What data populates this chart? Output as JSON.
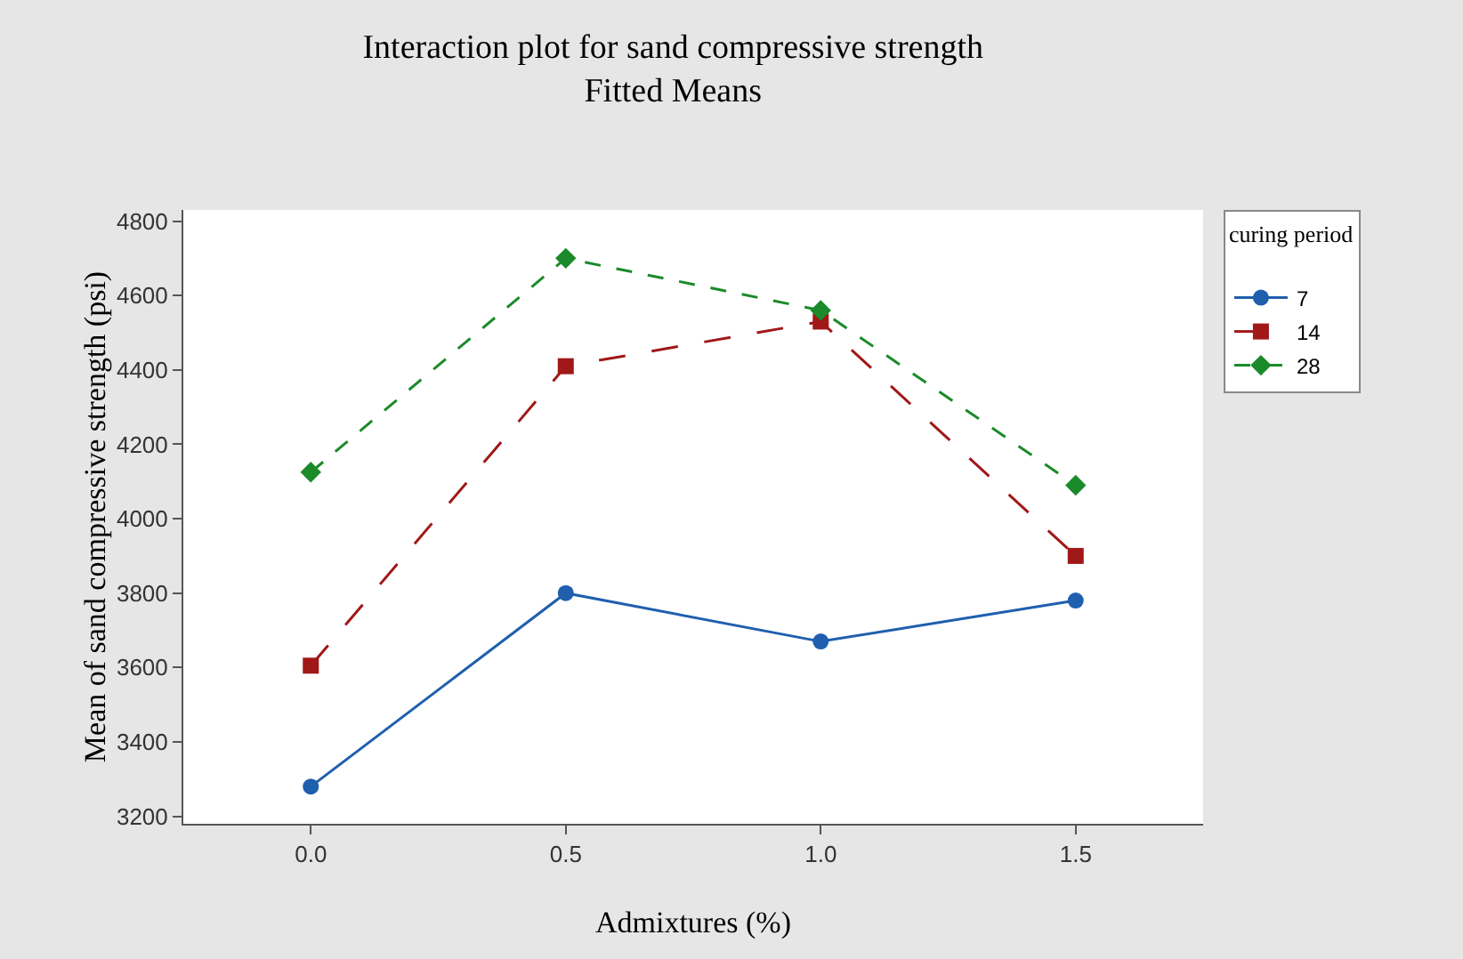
{
  "chart_data": {
    "type": "line",
    "title": "Interaction plot for sand compressive strength",
    "subtitle": "Fitted Means",
    "xlabel": "Admixtures (%)",
    "ylabel": "Mean of sand compressive strength (psi)",
    "legend_title": "curing period",
    "x": [
      0,
      0.5,
      1.0,
      1.5
    ],
    "series": [
      {
        "name": "7",
        "color": "#1f5fae",
        "marker": "circle",
        "line_style": "solid",
        "values": [
          3280,
          3800,
          3670,
          3780
        ]
      },
      {
        "name": "14",
        "color": "#a01818",
        "marker": "square",
        "line_style": "dashed",
        "values": [
          3605,
          4410,
          4530,
          3900
        ]
      },
      {
        "name": "28",
        "color": "#1a8a2a",
        "marker": "diamond",
        "line_style": "dotted",
        "values": [
          4125,
          4700,
          4560,
          4090
        ]
      }
    ],
    "xlim": [
      -0.25,
      1.75
    ],
    "xticks": [
      {
        "value": 0,
        "label": "0.0"
      },
      {
        "value": 0.5,
        "label": "0.5"
      },
      {
        "value": 1,
        "label": "1.0"
      },
      {
        "value": 1.5,
        "label": "1.5"
      }
    ],
    "ylim": [
      3180,
      4830
    ],
    "yticks": [
      3200,
      3400,
      3600,
      3800,
      4000,
      4200,
      4400,
      4600,
      4800
    ],
    "grid": false,
    "legend": "top right"
  }
}
